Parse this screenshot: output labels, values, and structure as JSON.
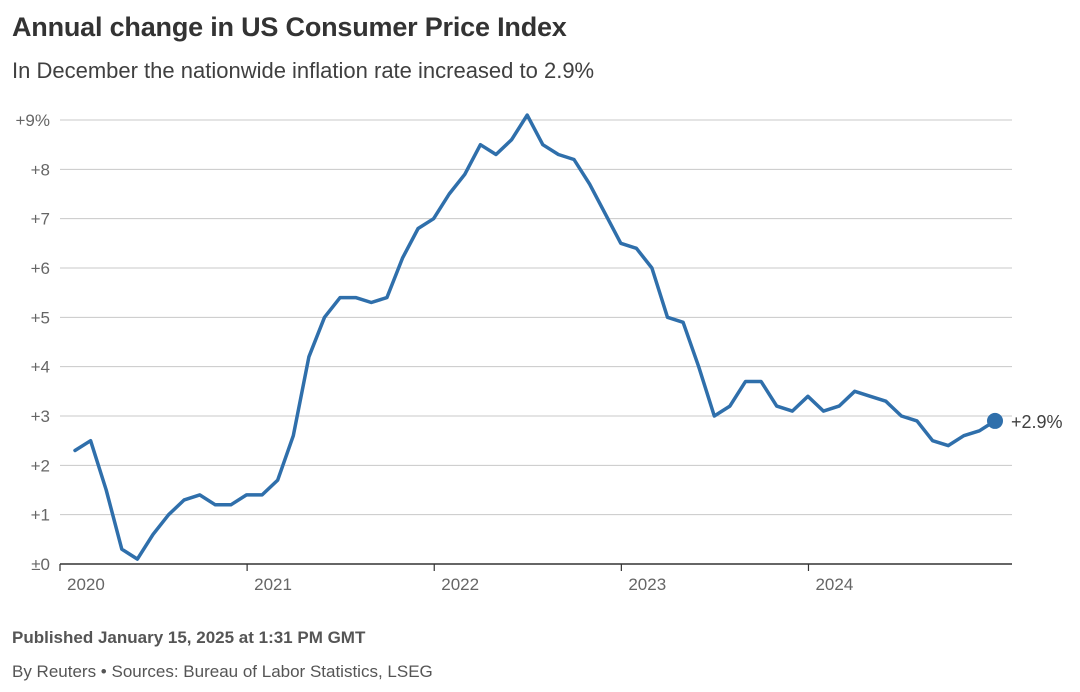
{
  "header": {
    "title": "Annual change in US Consumer Price Index",
    "subtitle": "In December the nationwide inflation rate increased to 2.9%"
  },
  "footer": {
    "published": "Published January 15, 2025 at 1:31 PM GMT",
    "source": "By Reuters • Sources: Bureau of Labor Statistics, LSEG"
  },
  "colors": {
    "line": "#2f6fab",
    "grid": "#c8c8c8",
    "axis": "#333333"
  },
  "chart_data": {
    "type": "line",
    "title": "Annual change in US Consumer Price Index",
    "subtitle": "In December the nationwide inflation rate increased to 2.9%",
    "xlabel": "",
    "ylabel": "",
    "ylim": [
      0,
      9
    ],
    "xlim": [
      "2020-01",
      "2024-12"
    ],
    "grid": true,
    "y_ticks": [
      0,
      1,
      2,
      3,
      4,
      5,
      6,
      7,
      8,
      9
    ],
    "y_tick_labels": [
      "±0",
      "+1",
      "+2",
      "+3",
      "+4",
      "+5",
      "+6",
      "+7",
      "+8",
      "+9%"
    ],
    "x_ticks": [
      "2020-01",
      "2021-01",
      "2022-01",
      "2023-01",
      "2024-01"
    ],
    "x_tick_labels": [
      "2020",
      "2021",
      "2022",
      "2023",
      "2024"
    ],
    "end_label": "+2.9%",
    "x": [
      "2020-01",
      "2020-02",
      "2020-03",
      "2020-04",
      "2020-05",
      "2020-06",
      "2020-07",
      "2020-08",
      "2020-09",
      "2020-10",
      "2020-11",
      "2020-12",
      "2021-01",
      "2021-02",
      "2021-03",
      "2021-04",
      "2021-05",
      "2021-06",
      "2021-07",
      "2021-08",
      "2021-09",
      "2021-10",
      "2021-11",
      "2021-12",
      "2022-01",
      "2022-02",
      "2022-03",
      "2022-04",
      "2022-05",
      "2022-06",
      "2022-07",
      "2022-08",
      "2022-09",
      "2022-10",
      "2022-11",
      "2022-12",
      "2023-01",
      "2023-02",
      "2023-03",
      "2023-04",
      "2023-05",
      "2023-06",
      "2023-07",
      "2023-08",
      "2023-09",
      "2023-10",
      "2023-11",
      "2023-12",
      "2024-01",
      "2024-02",
      "2024-03",
      "2024-04",
      "2024-05",
      "2024-06",
      "2024-07",
      "2024-08",
      "2024-09",
      "2024-10",
      "2024-11",
      "2024-12"
    ],
    "series": [
      {
        "values": [
          2.3,
          2.5,
          1.5,
          0.3,
          0.1,
          0.6,
          1.0,
          1.3,
          1.4,
          1.2,
          1.2,
          1.4,
          1.4,
          1.7,
          2.6,
          4.2,
          5.0,
          5.4,
          5.4,
          5.3,
          5.4,
          6.2,
          6.8,
          7.0,
          7.5,
          7.9,
          8.5,
          8.3,
          8.6,
          9.1,
          8.5,
          8.3,
          8.2,
          7.7,
          7.1,
          6.5,
          6.4,
          6.0,
          5.0,
          4.9,
          4.0,
          3.0,
          3.2,
          3.7,
          3.7,
          3.2,
          3.1,
          3.4,
          3.1,
          3.2,
          3.5,
          3.4,
          3.3,
          3.0,
          2.9,
          2.5,
          2.4,
          2.6,
          2.7,
          2.9
        ]
      }
    ]
  }
}
